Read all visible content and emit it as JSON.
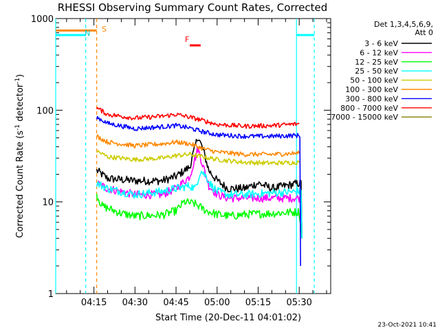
{
  "chart_data": {
    "type": "line",
    "title": "RHESSI Observing Summary Count Rates, Corrected",
    "xlabel": "Start Time (20-Dec-11 04:01:02)",
    "ylabel": "Corrected Count Rate (s⁻¹ detector⁻¹)",
    "ylabel_main": "Corrected Count Rate (s",
    "ylabel_mid": " detector",
    "ylabel_end": ")",
    "ylabel_sup": "-1",
    "yscale": "log",
    "ylim": [
      1,
      1000
    ],
    "xlim_minutes": [
      1.03,
      101.5
    ],
    "x_ticks": [
      {
        "label": "04:15",
        "minute": 15
      },
      {
        "label": "04:30",
        "minute": 30
      },
      {
        "label": "04:45",
        "minute": 45
      },
      {
        "label": "05:00",
        "minute": 60
      },
      {
        "label": "05:15",
        "minute": 75
      },
      {
        "label": "05:30",
        "minute": 90
      }
    ],
    "y_ticks": [
      {
        "label": "1",
        "value": 1
      },
      {
        "label": "10",
        "value": 10
      },
      {
        "label": "100",
        "value": 100
      },
      {
        "label": "1000",
        "value": 1000
      }
    ],
    "legend": {
      "header1": "Det 1,3,4,5,6,9,",
      "header2": "Att 0",
      "placement": "right"
    },
    "series": [
      {
        "name": "3 - 6 keV",
        "color": "#000000",
        "x": [
          16,
          20,
          30,
          40,
          45,
          50,
          53,
          55,
          57,
          60,
          64,
          70,
          75,
          80,
          85,
          90,
          91
        ],
        "y": [
          22,
          18,
          17,
          17,
          19,
          24,
          52,
          36,
          22,
          17,
          14,
          14,
          16,
          14,
          15,
          16,
          4
        ]
      },
      {
        "name": "6 - 12 keV",
        "color": "#ff00ff",
        "x": [
          16,
          20,
          30,
          40,
          45,
          50,
          53,
          55,
          57,
          60,
          64,
          70,
          80,
          90,
          91
        ],
        "y": [
          16,
          14,
          12,
          12,
          14,
          19,
          38,
          24,
          15,
          12,
          11,
          11,
          11,
          11,
          4
        ]
      },
      {
        "name": "12 - 25 keV",
        "color": "#00ff00",
        "x": [
          16,
          18,
          25,
          30,
          40,
          45,
          48,
          52,
          56,
          60,
          65,
          70,
          80,
          90,
          91
        ],
        "y": [
          12,
          9,
          7.5,
          7,
          7.2,
          8,
          10,
          9.5,
          8,
          7.3,
          7,
          7.3,
          7.5,
          7.8,
          4
        ]
      },
      {
        "name": "25 - 50 keV",
        "color": "#00ffff",
        "x": [
          16,
          20,
          30,
          40,
          45,
          50,
          52,
          54,
          56,
          58,
          60,
          64,
          70,
          80,
          90,
          91
        ],
        "y": [
          16,
          14,
          12,
          13,
          14,
          15,
          14,
          22,
          19,
          15,
          13,
          12,
          12,
          12.5,
          13,
          4
        ]
      },
      {
        "name": "50 - 100 keV",
        "color": "#cccc00",
        "x": [
          16,
          20,
          30,
          40,
          45,
          50,
          55,
          60,
          70,
          80,
          90
        ],
        "y": [
          36,
          31,
          29,
          30,
          32,
          33,
          31,
          29,
          27,
          26.5,
          27
        ]
      },
      {
        "name": "100 - 300 keV",
        "color": "#ff8800",
        "x": [
          16,
          20,
          30,
          40,
          45,
          50,
          55,
          60,
          70,
          80,
          90
        ],
        "y": [
          52,
          45,
          41,
          43,
          45,
          43,
          38,
          35,
          33,
          33,
          34
        ]
      },
      {
        "name": "300 - 800 keV",
        "color": "#0000ff",
        "x": [
          16,
          20,
          30,
          40,
          45,
          50,
          55,
          60,
          70,
          80,
          88,
          90,
          90.5
        ],
        "y": [
          84,
          72,
          63,
          66,
          68,
          64,
          58,
          54,
          52,
          52,
          53,
          53,
          2
        ]
      },
      {
        "name": "800 - 7000 keV",
        "color": "#ff0000",
        "x": [
          16,
          20,
          30,
          40,
          45,
          50,
          55,
          60,
          70,
          80,
          90
        ],
        "y": [
          106,
          90,
          82,
          86,
          90,
          84,
          77,
          70,
          67,
          68,
          71
        ]
      },
      {
        "name": "7000 - 15000 keV",
        "color": "#808000",
        "x": [],
        "y": []
      }
    ],
    "annotations": {
      "s_label": "S",
      "n_label": "N",
      "f_label": "F",
      "footer_date": "23-Oct-2021 10:41",
      "s_bar": {
        "x_from": 1.03,
        "x_to": 16,
        "value": 740,
        "color": "#ff8800"
      },
      "n_bar_left": {
        "x_from": 1.03,
        "x_to": 12,
        "value": 660,
        "color": "#00ffff"
      },
      "n_bar_right": {
        "x_from": 89,
        "x_to": 95.5,
        "value": 660,
        "color": "#00ffff"
      },
      "f_bar": {
        "x_from": 50,
        "x_to": 54,
        "value": 510,
        "color": "#ff0000"
      },
      "vlines": [
        {
          "x": 1.03,
          "color": "#00ffff",
          "style": "solid"
        },
        {
          "x": 12,
          "color": "#00ffff",
          "style": "dashed"
        },
        {
          "x": 16,
          "color": "#ff8800",
          "style": "dashed"
        },
        {
          "x": 89,
          "color": "#00ffff",
          "style": "solid"
        },
        {
          "x": 95.5,
          "color": "#00ffff",
          "style": "dashed"
        }
      ]
    }
  }
}
